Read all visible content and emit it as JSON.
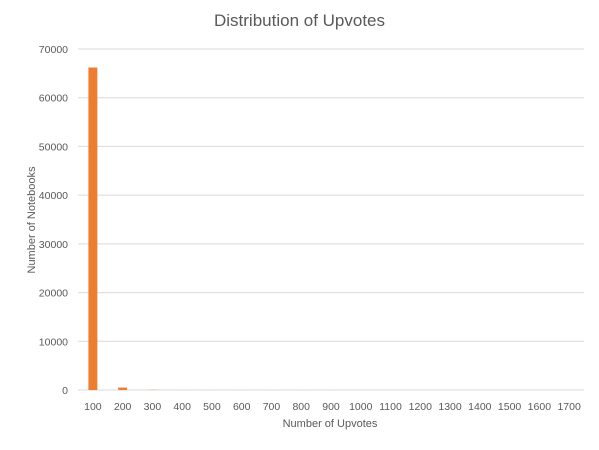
{
  "chart_data": {
    "type": "bar",
    "title": "Distribution of Upvotes",
    "xlabel": "Number  of Upvotes",
    "ylabel": "Number  of Notebooks",
    "categories": [
      "100",
      "200",
      "300",
      "400",
      "500",
      "600",
      "700",
      "800",
      "900",
      "1000",
      "1100",
      "1200",
      "1300",
      "1400",
      "1500",
      "1600",
      "1700"
    ],
    "values": [
      66200,
      500,
      40,
      15,
      8,
      5,
      3,
      2,
      2,
      1,
      1,
      0,
      0,
      0,
      0,
      0,
      0
    ],
    "ylim": [
      0,
      70000
    ],
    "yticks": [
      0,
      10000,
      20000,
      30000,
      40000,
      50000,
      60000,
      70000
    ],
    "grid": true,
    "legend": "none",
    "bar_color": "#ED7D31",
    "grid_color": "#D9D9D9"
  }
}
